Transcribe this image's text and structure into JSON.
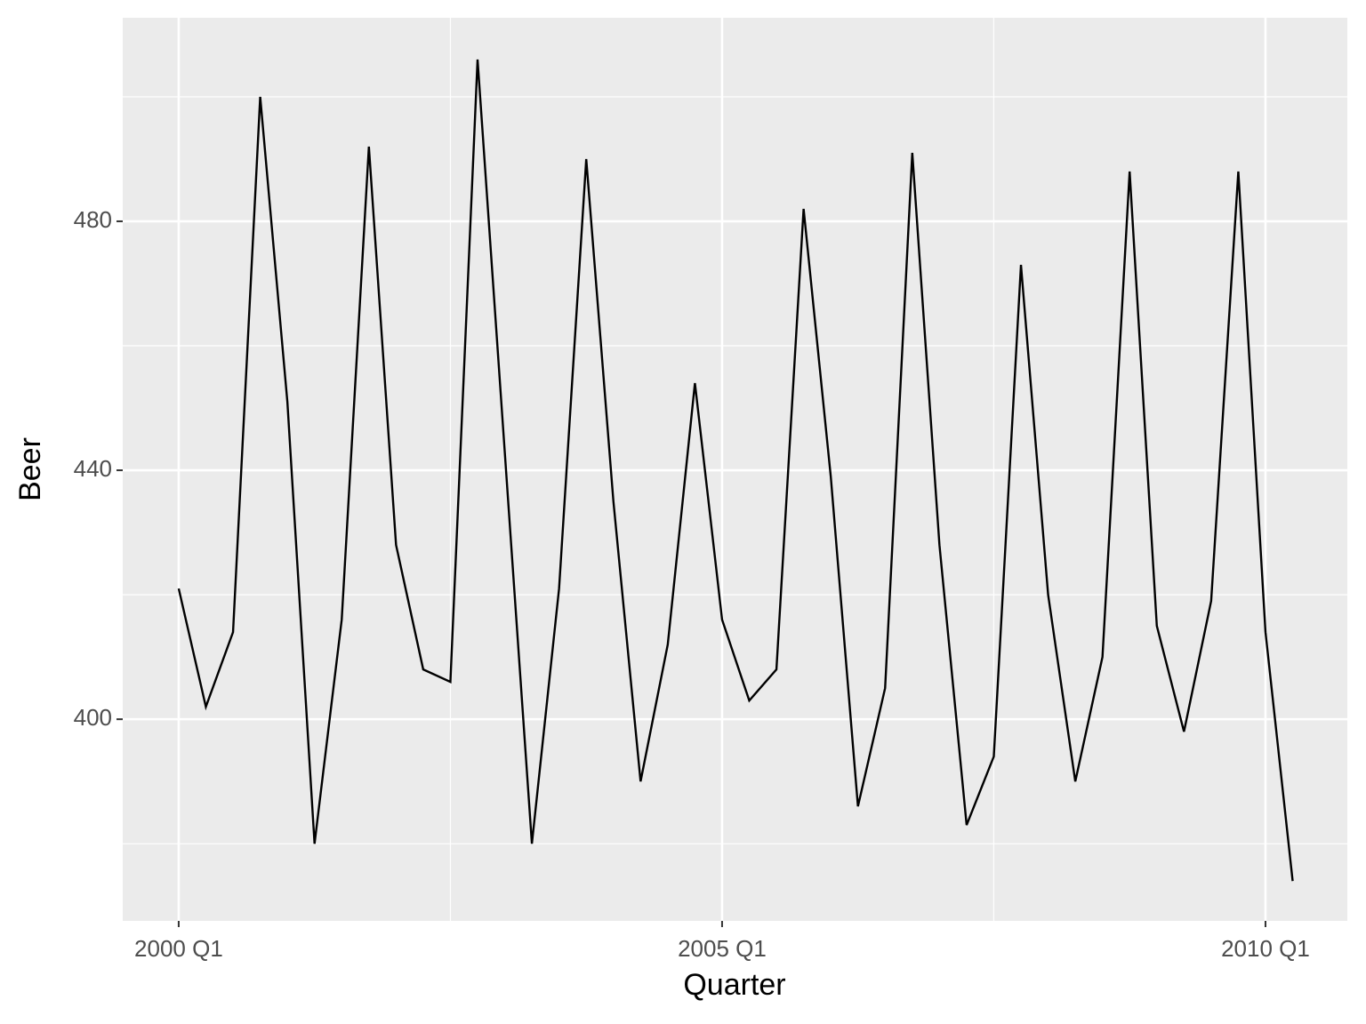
{
  "chart_data": {
    "type": "line",
    "x_label": "Quarter",
    "y_label": "Beer",
    "x": [
      2000,
      2000.25,
      2000.5,
      2000.75,
      2001,
      2001.25,
      2001.5,
      2001.75,
      2002,
      2002.25,
      2002.5,
      2002.75,
      2003,
      2003.25,
      2003.5,
      2003.75,
      2004,
      2004.25,
      2004.5,
      2004.75,
      2005,
      2005.25,
      2005.5,
      2005.75,
      2006,
      2006.25,
      2006.5,
      2006.75,
      2007,
      2007.25,
      2007.5,
      2007.75,
      2008,
      2008.25,
      2008.5,
      2008.75,
      2009,
      2009.25,
      2009.5,
      2009.75,
      2010,
      2010.25
    ],
    "values": [
      421,
      402,
      414,
      500,
      451,
      380,
      416,
      492,
      428,
      408,
      406,
      506,
      443,
      380,
      421,
      490,
      435,
      390,
      412,
      454,
      416,
      403,
      408,
      482,
      439,
      386,
      405,
      491,
      428,
      383,
      394,
      473,
      420,
      390,
      410,
      488,
      415,
      398,
      419,
      488,
      414,
      374
    ],
    "color": "#000000",
    "xlim": [
      1999.485,
      2010.753
    ],
    "xticks": [
      {
        "value": 2000,
        "label": "2000 Q1"
      },
      {
        "value": 2005,
        "label": "2005 Q1"
      },
      {
        "value": 2010,
        "label": "2010 Q1"
      }
    ],
    "x_minor_ticks": [
      2002.5,
      2007.5
    ],
    "ylim": [
      367.6,
      512.7
    ],
    "yticks": [
      400,
      440,
      480
    ],
    "y_minor_ticks": [
      380,
      420,
      460,
      500
    ],
    "grid": true
  }
}
